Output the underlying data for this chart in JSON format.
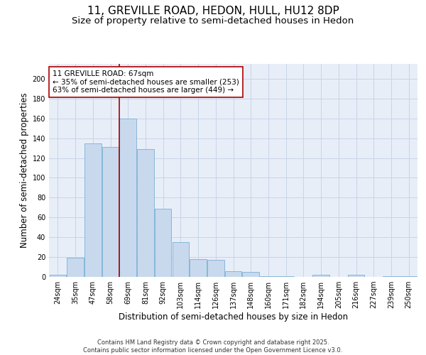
{
  "title_line1": "11, GREVILLE ROAD, HEDON, HULL, HU12 8DP",
  "title_line2": "Size of property relative to semi-detached houses in Hedon",
  "xlabel": "Distribution of semi-detached houses by size in Hedon",
  "ylabel": "Number of semi-detached properties",
  "categories": [
    "24sqm",
    "35sqm",
    "47sqm",
    "58sqm",
    "69sqm",
    "81sqm",
    "92sqm",
    "103sqm",
    "114sqm",
    "126sqm",
    "137sqm",
    "148sqm",
    "160sqm",
    "171sqm",
    "182sqm",
    "194sqm",
    "205sqm",
    "216sqm",
    "227sqm",
    "239sqm",
    "250sqm"
  ],
  "values": [
    2,
    19,
    135,
    131,
    160,
    129,
    69,
    35,
    18,
    17,
    6,
    5,
    1,
    1,
    0,
    2,
    0,
    2,
    0,
    1,
    1
  ],
  "bar_color": "#c8d9ee",
  "bar_edge_color": "#7aafd4",
  "vline_color": "#aa0000",
  "annotation_text": "11 GREVILLE ROAD: 67sqm\n← 35% of semi-detached houses are smaller (253)\n63% of semi-detached houses are larger (449) →",
  "annotation_box_color": "#ffffff",
  "annotation_box_edge_color": "#aa0000",
  "ylim": [
    0,
    215
  ],
  "yticks": [
    0,
    20,
    40,
    60,
    80,
    100,
    120,
    140,
    160,
    180,
    200
  ],
  "grid_color": "#c8d4e8",
  "background_color": "#e8eef8",
  "footer_text": "Contains HM Land Registry data © Crown copyright and database right 2025.\nContains public sector information licensed under the Open Government Licence v3.0.",
  "title_fontsize": 11,
  "subtitle_fontsize": 9.5,
  "axis_label_fontsize": 8.5,
  "tick_fontsize": 7,
  "annotation_fontsize": 7.5,
  "footer_fontsize": 6
}
